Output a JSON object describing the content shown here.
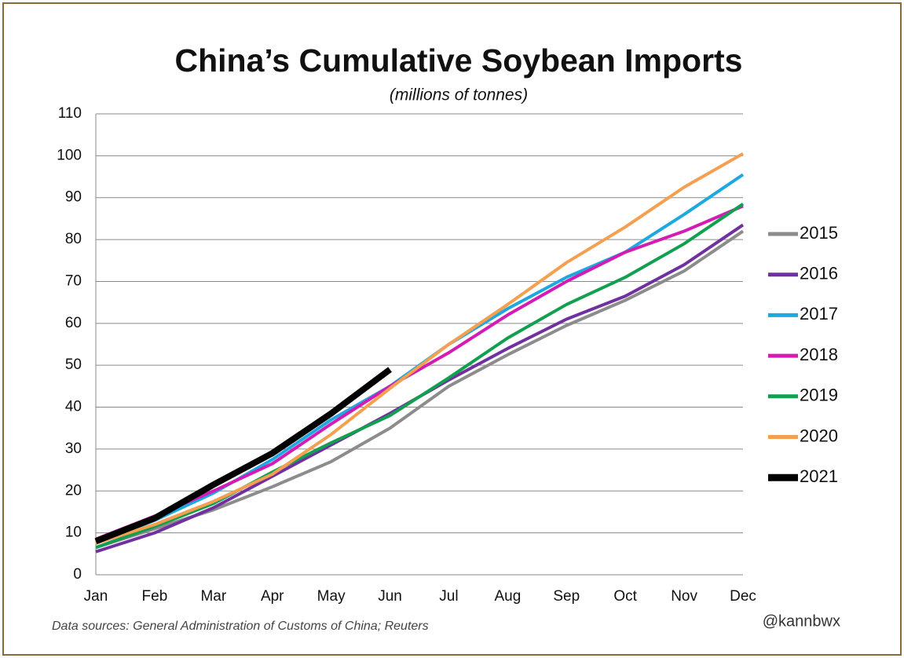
{
  "chart_data": {
    "type": "line",
    "title": "China’s Cumulative Soybean Imports",
    "subtitle": "(millions of tonnes)",
    "source": "Data sources: General Administration of Customs of China; Reuters",
    "credit": "@kannbwx",
    "categories": [
      "Jan",
      "Feb",
      "Mar",
      "Apr",
      "May",
      "Jun",
      "Jul",
      "Aug",
      "Sep",
      "Oct",
      "Nov",
      "Dec"
    ],
    "ylim": [
      0,
      110
    ],
    "yticks": [
      0,
      10,
      20,
      30,
      40,
      50,
      60,
      70,
      80,
      90,
      100,
      110
    ],
    "grid": true,
    "legend": "right",
    "series": [
      {
        "name": "2015",
        "color": "#8c8c8c",
        "width": 4,
        "values": [
          6.5,
          11,
          15.5,
          21,
          27,
          35,
          45,
          52.5,
          59.5,
          65.5,
          72.5,
          82
        ]
      },
      {
        "name": "2016",
        "color": "#7030a0",
        "width": 4,
        "values": [
          5.5,
          10,
          16,
          23.5,
          31,
          38.5,
          46.5,
          54,
          61,
          66.5,
          74,
          83.5
        ]
      },
      {
        "name": "2017",
        "color": "#1ea8e0",
        "width": 4,
        "values": [
          7.5,
          13,
          19.5,
          27.5,
          37,
          45,
          55,
          63.5,
          71,
          77,
          86,
          95.5
        ]
      },
      {
        "name": "2018",
        "color": "#d21cb4",
        "width": 4,
        "values": [
          8.5,
          14,
          20,
          26.5,
          36,
          45,
          53,
          62,
          70,
          77,
          82,
          88
        ]
      },
      {
        "name": "2019",
        "color": "#12a050",
        "width": 4,
        "values": [
          6.5,
          11.5,
          17,
          24.5,
          31.5,
          38,
          47,
          56.5,
          64.5,
          71,
          79,
          88.5
        ]
      },
      {
        "name": "2020",
        "color": "#f5a050",
        "width": 4,
        "values": [
          7.5,
          12,
          17.5,
          24,
          33.5,
          44.5,
          55,
          64.5,
          74.5,
          83,
          92.5,
          100.5
        ]
      },
      {
        "name": "2021",
        "color": "#000000",
        "width": 8,
        "values": [
          8,
          13.5,
          21.5,
          29,
          38.5,
          49,
          null,
          null,
          null,
          null,
          null,
          null
        ]
      }
    ]
  }
}
